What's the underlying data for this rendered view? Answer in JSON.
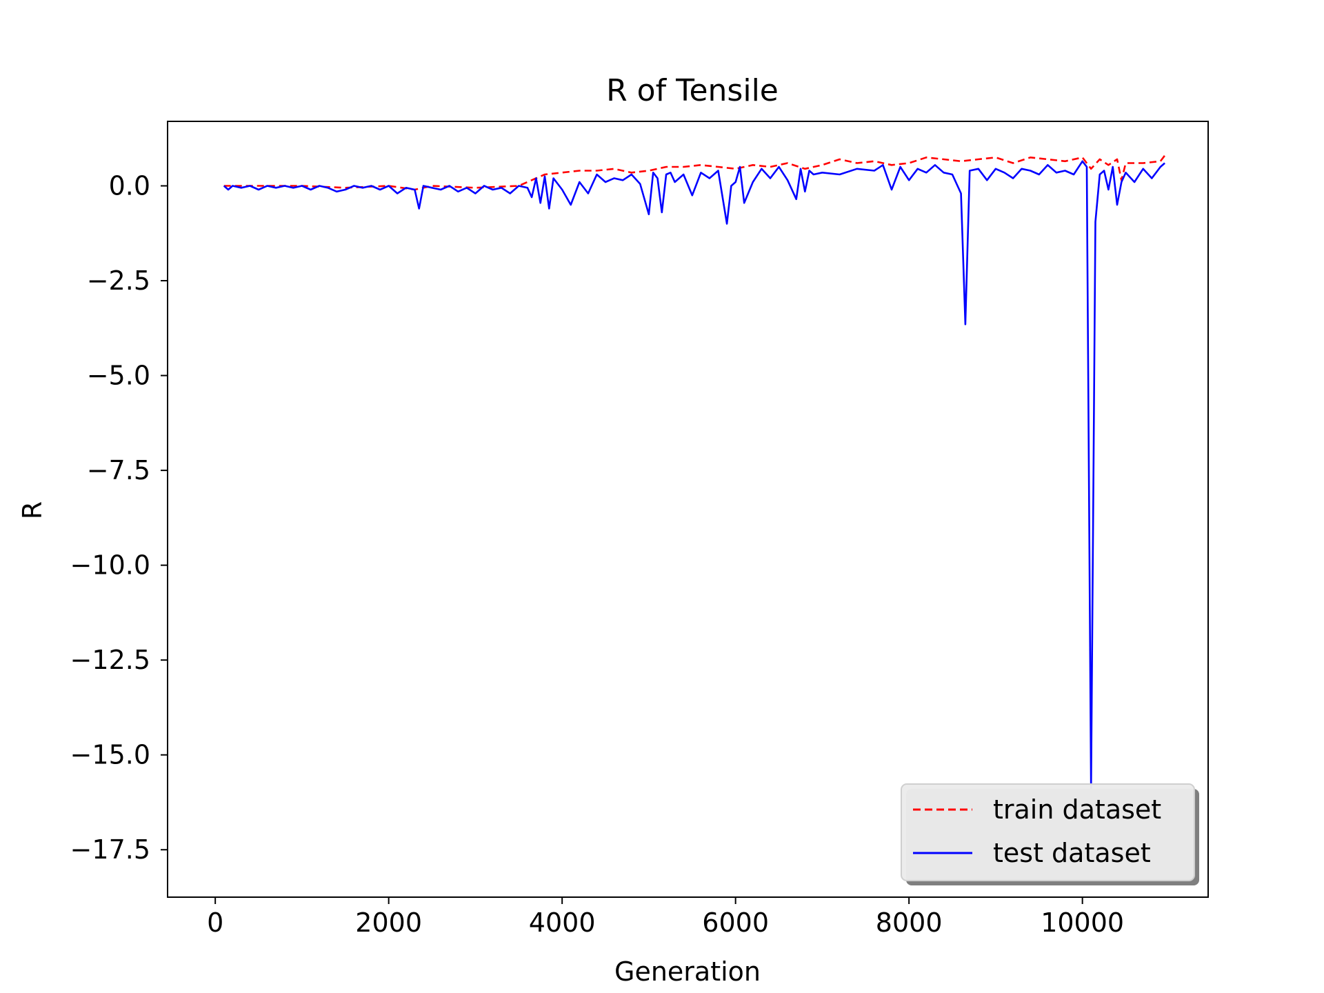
{
  "chart_data": {
    "type": "line",
    "title": "R of Tensile",
    "xlabel": "Generation",
    "ylabel": "R",
    "xlim": [
      -550,
      11450
    ],
    "ylim": [
      -18.75,
      1.7
    ],
    "xticks": [
      0,
      2000,
      4000,
      6000,
      8000,
      10000
    ],
    "xtick_labels": [
      "0",
      "2000",
      "4000",
      "6000",
      "8000",
      "10000"
    ],
    "yticks": [
      0.0,
      -2.5,
      -5.0,
      -7.5,
      -10.0,
      -12.5,
      -15.0,
      -17.5
    ],
    "ytick_labels": [
      "0.0",
      "−2.5",
      "−5.0",
      "−7.5",
      "−10.0",
      "−12.5",
      "−15.0",
      "−17.5"
    ],
    "grid": false,
    "legend": {
      "position": "lower-right",
      "entries": [
        "train dataset",
        "test dataset"
      ]
    },
    "series": [
      {
        "name": "train dataset",
        "color": "#ff0000",
        "style": "dashed",
        "x": [
          100,
          500,
          1000,
          1500,
          2000,
          2300,
          2500,
          3000,
          3500,
          3700,
          3800,
          4000,
          4200,
          4400,
          4600,
          4800,
          5000,
          5200,
          5400,
          5600,
          5800,
          6000,
          6200,
          6400,
          6600,
          6800,
          7000,
          7200,
          7400,
          7600,
          7800,
          8000,
          8200,
          8400,
          8600,
          8800,
          9000,
          9200,
          9400,
          9600,
          9800,
          10000,
          10100,
          10200,
          10300,
          10400,
          10450,
          10500,
          10700,
          10900,
          10950
        ],
        "y": [
          0.0,
          0.0,
          0.0,
          -0.05,
          0.0,
          -0.1,
          0.0,
          -0.05,
          0.0,
          0.2,
          0.3,
          0.35,
          0.4,
          0.4,
          0.45,
          0.35,
          0.4,
          0.5,
          0.5,
          0.55,
          0.5,
          0.45,
          0.55,
          0.5,
          0.6,
          0.45,
          0.55,
          0.7,
          0.6,
          0.65,
          0.55,
          0.6,
          0.75,
          0.7,
          0.65,
          0.7,
          0.75,
          0.6,
          0.75,
          0.7,
          0.65,
          0.75,
          0.45,
          0.7,
          0.55,
          0.7,
          0.15,
          0.6,
          0.6,
          0.65,
          0.8
        ]
      },
      {
        "name": "test dataset",
        "color": "#0000ff",
        "style": "solid",
        "x": [
          100,
          150,
          200,
          300,
          400,
          500,
          600,
          700,
          800,
          900,
          1000,
          1100,
          1200,
          1300,
          1400,
          1500,
          1600,
          1700,
          1800,
          1900,
          2000,
          2100,
          2200,
          2300,
          2350,
          2400,
          2500,
          2600,
          2700,
          2800,
          2900,
          3000,
          3100,
          3200,
          3300,
          3400,
          3500,
          3600,
          3650,
          3700,
          3750,
          3800,
          3850,
          3900,
          4000,
          4100,
          4200,
          4300,
          4400,
          4500,
          4600,
          4700,
          4800,
          4900,
          5000,
          5050,
          5100,
          5150,
          5200,
          5250,
          5300,
          5400,
          5500,
          5600,
          5700,
          5800,
          5900,
          5950,
          6000,
          6050,
          6100,
          6200,
          6300,
          6400,
          6500,
          6600,
          6700,
          6750,
          6800,
          6850,
          6900,
          7000,
          7200,
          7400,
          7600,
          7700,
          7800,
          7900,
          8000,
          8100,
          8200,
          8300,
          8400,
          8500,
          8600,
          8650,
          8700,
          8800,
          8900,
          9000,
          9100,
          9200,
          9300,
          9400,
          9500,
          9600,
          9700,
          9800,
          9900,
          10000,
          10050,
          10100,
          10150,
          10200,
          10250,
          10300,
          10350,
          10400,
          10450,
          10500,
          10600,
          10700,
          10800,
          10900,
          10950
        ],
        "y": [
          0.0,
          -0.1,
          0.0,
          -0.05,
          0.0,
          -0.1,
          0.0,
          -0.05,
          0.0,
          -0.05,
          0.0,
          -0.1,
          0.0,
          -0.05,
          -0.15,
          -0.1,
          0.0,
          -0.05,
          0.0,
          -0.1,
          0.0,
          -0.2,
          -0.05,
          -0.1,
          -0.6,
          0.0,
          -0.05,
          -0.1,
          0.0,
          -0.15,
          -0.05,
          -0.2,
          0.0,
          -0.1,
          -0.05,
          -0.2,
          0.0,
          -0.05,
          -0.3,
          0.2,
          -0.45,
          0.25,
          -0.6,
          0.2,
          -0.1,
          -0.5,
          0.1,
          -0.2,
          0.3,
          0.1,
          0.2,
          0.15,
          0.3,
          0.05,
          -0.75,
          0.35,
          0.2,
          -0.7,
          0.3,
          0.35,
          0.1,
          0.3,
          -0.25,
          0.35,
          0.2,
          0.4,
          -1.0,
          0.0,
          0.1,
          0.5,
          -0.45,
          0.1,
          0.45,
          0.2,
          0.5,
          0.15,
          -0.35,
          0.45,
          -0.15,
          0.4,
          0.3,
          0.35,
          0.3,
          0.45,
          0.4,
          0.55,
          -0.1,
          0.5,
          0.15,
          0.45,
          0.35,
          0.55,
          0.35,
          0.3,
          -0.2,
          -3.65,
          0.4,
          0.45,
          0.15,
          0.45,
          0.35,
          0.2,
          0.45,
          0.4,
          0.3,
          0.55,
          0.35,
          0.4,
          0.3,
          0.65,
          0.5,
          -15.9,
          -0.95,
          0.3,
          0.4,
          -0.1,
          0.5,
          -0.5,
          0.1,
          0.35,
          0.1,
          0.45,
          0.2,
          0.5,
          0.6
        ]
      }
    ]
  }
}
